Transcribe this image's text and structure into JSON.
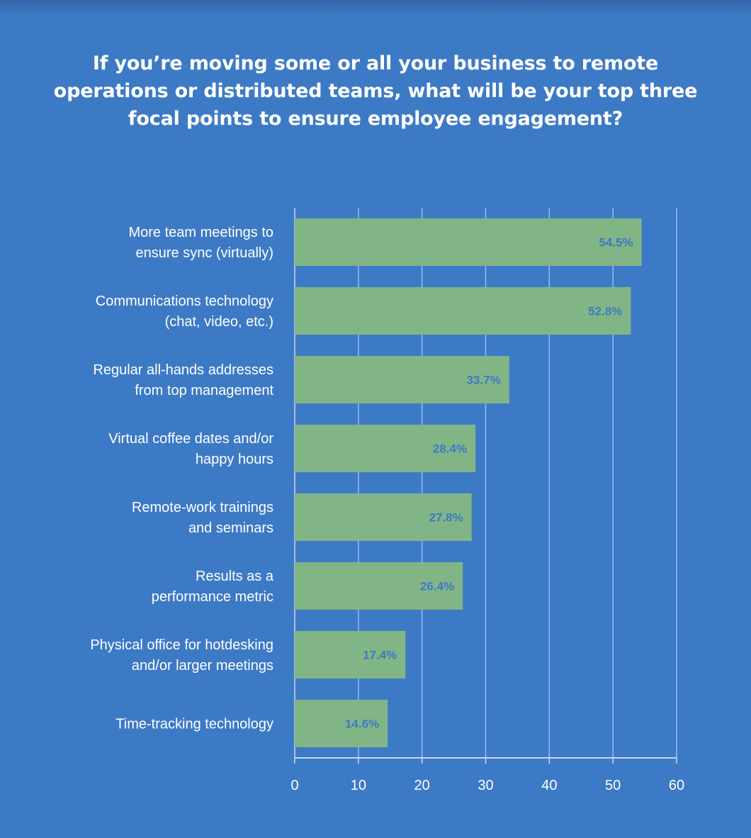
{
  "chart_data": {
    "type": "bar",
    "orientation": "horizontal",
    "title": "If you’re moving some or all your business to remote operations or distributed teams, what will be your top three focal points to ensure employee engagement?",
    "categories": [
      [
        "More team meetings to",
        "ensure sync (virtually)"
      ],
      [
        "Communications technology",
        "(chat, video, etc.)"
      ],
      [
        "Regular all-hands addresses",
        "from top management"
      ],
      [
        "Virtual coffee dates and/or",
        "happy hours"
      ],
      [
        "Remote-work trainings",
        "and seminars"
      ],
      [
        "Results as a",
        "performance metric"
      ],
      [
        "Physical office for hotdesking",
        "and/or larger meetings"
      ],
      [
        "Time-tracking technology"
      ]
    ],
    "values": [
      54.5,
      52.8,
      33.7,
      28.4,
      27.8,
      26.4,
      17.4,
      14.6
    ],
    "data_labels": [
      "54.5%",
      "52.8%",
      "33.7%",
      "28.4%",
      "27.8%",
      "26.4%",
      "17.4%",
      "14.6%"
    ],
    "xlim": [
      0,
      60
    ],
    "xticks": [
      "0",
      "10",
      "20",
      "30",
      "40",
      "50",
      "60"
    ],
    "grid": true,
    "colors": {
      "background": "#3d7ac6",
      "bar": "#82b585",
      "value_label": "#3d7ac6",
      "grid": "#9cbde6",
      "axis": "#c4d8f0",
      "text": "#ffffff"
    }
  }
}
